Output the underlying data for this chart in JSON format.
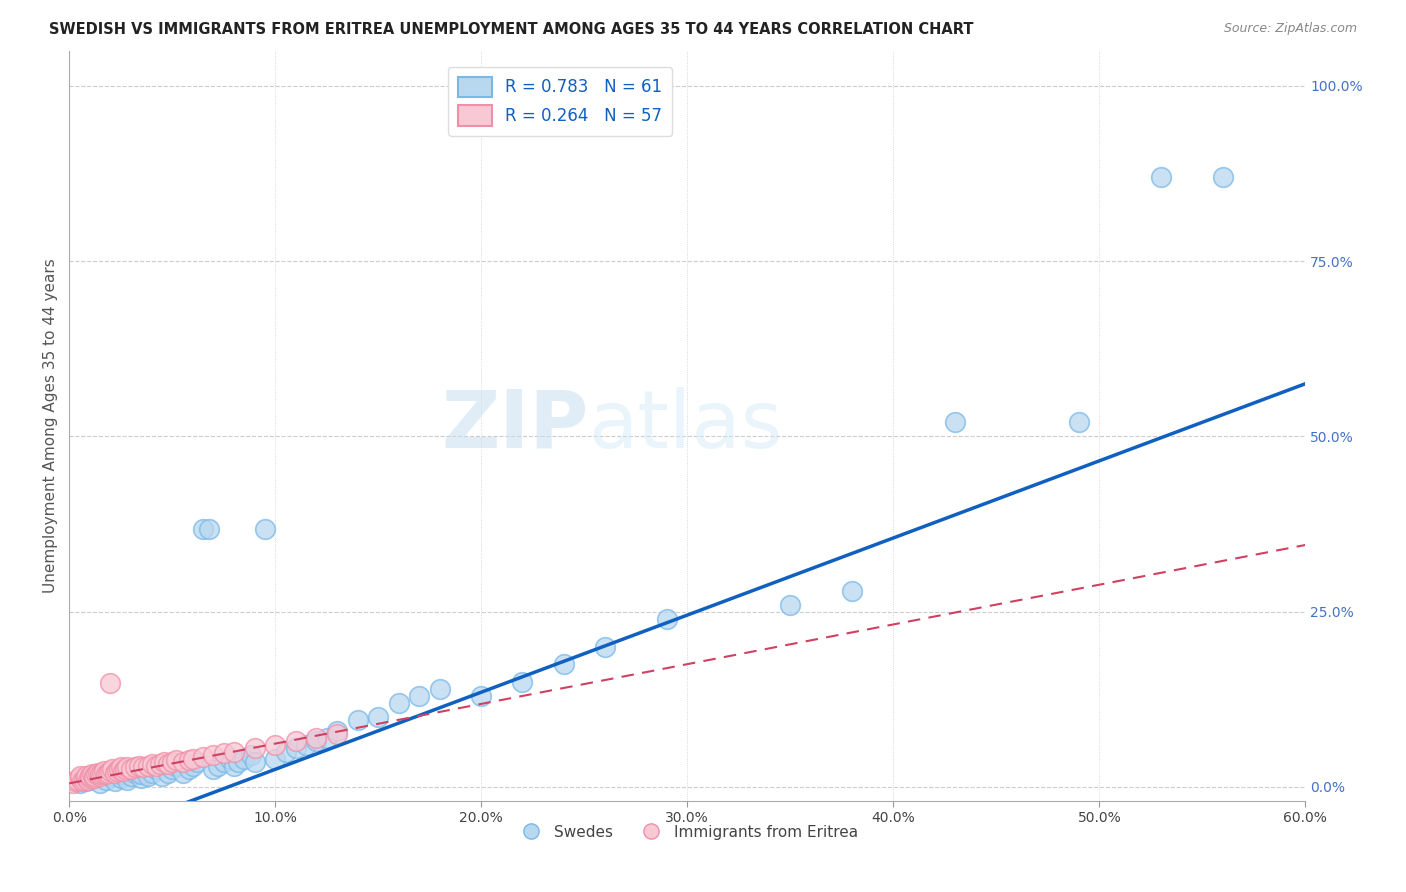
{
  "title": "SWEDISH VS IMMIGRANTS FROM ERITREA UNEMPLOYMENT AMONG AGES 35 TO 44 YEARS CORRELATION CHART",
  "source": "Source: ZipAtlas.com",
  "ylabel": "Unemployment Among Ages 35 to 44 years",
  "xlim": [
    0.0,
    0.6
  ],
  "ylim": [
    -0.02,
    1.05
  ],
  "xticks": [
    0.0,
    0.1,
    0.2,
    0.3,
    0.4,
    0.5,
    0.6
  ],
  "xticklabels": [
    "0.0%",
    "10.0%",
    "20.0%",
    "30.0%",
    "40.0%",
    "50.0%",
    "60.0%"
  ],
  "ytick_vals": [
    0.0,
    0.25,
    0.5,
    0.75,
    1.0
  ],
  "yticklabels_right": [
    "0.0%",
    "25.0%",
    "50.0%",
    "75.0%",
    "100.0%"
  ],
  "legend_blue_label": "R = 0.783   N = 61",
  "legend_pink_label": "R = 0.264   N = 57",
  "blue_scatter_color_face": "#b8d8f0",
  "blue_scatter_color_edge": "#7ab8e8",
  "pink_scatter_color_face": "#f8c8d4",
  "pink_scatter_color_edge": "#f090a8",
  "blue_line_color": "#1060c0",
  "pink_line_color": "#d04060",
  "watermark_text": "ZIPatlas",
  "swedes_label": "Swedes",
  "eritrea_label": "Immigrants from Eritrea",
  "blue_scatter_x": [
    0.005,
    0.008,
    0.01,
    0.012,
    0.015,
    0.018,
    0.02,
    0.022,
    0.025,
    0.025,
    0.028,
    0.03,
    0.032,
    0.035,
    0.035,
    0.038,
    0.04,
    0.042,
    0.045,
    0.048,
    0.05,
    0.052,
    0.055,
    0.058,
    0.06,
    0.062,
    0.065,
    0.068,
    0.07,
    0.072,
    0.075,
    0.078,
    0.08,
    0.082,
    0.085,
    0.088,
    0.09,
    0.095,
    0.1,
    0.105,
    0.11,
    0.115,
    0.12,
    0.125,
    0.13,
    0.14,
    0.15,
    0.16,
    0.17,
    0.18,
    0.2,
    0.22,
    0.24,
    0.26,
    0.29,
    0.35,
    0.38,
    0.43,
    0.49,
    0.53,
    0.56
  ],
  "blue_scatter_y": [
    0.005,
    0.008,
    0.01,
    0.012,
    0.005,
    0.01,
    0.015,
    0.008,
    0.012,
    0.018,
    0.01,
    0.015,
    0.02,
    0.012,
    0.018,
    0.015,
    0.02,
    0.025,
    0.015,
    0.02,
    0.025,
    0.03,
    0.02,
    0.025,
    0.03,
    0.035,
    0.368,
    0.368,
    0.025,
    0.03,
    0.035,
    0.04,
    0.03,
    0.035,
    0.04,
    0.045,
    0.035,
    0.368,
    0.04,
    0.05,
    0.055,
    0.06,
    0.065,
    0.07,
    0.08,
    0.095,
    0.1,
    0.12,
    0.13,
    0.14,
    0.13,
    0.15,
    0.175,
    0.2,
    0.24,
    0.26,
    0.28,
    0.52,
    0.52,
    0.87,
    0.87
  ],
  "pink_scatter_x": [
    0.002,
    0.003,
    0.004,
    0.005,
    0.005,
    0.006,
    0.007,
    0.008,
    0.008,
    0.009,
    0.01,
    0.01,
    0.011,
    0.012,
    0.012,
    0.013,
    0.014,
    0.015,
    0.015,
    0.016,
    0.017,
    0.018,
    0.019,
    0.02,
    0.021,
    0.022,
    0.023,
    0.024,
    0.025,
    0.026,
    0.027,
    0.028,
    0.03,
    0.032,
    0.034,
    0.036,
    0.038,
    0.04,
    0.042,
    0.044,
    0.046,
    0.048,
    0.05,
    0.052,
    0.055,
    0.058,
    0.06,
    0.065,
    0.07,
    0.075,
    0.08,
    0.09,
    0.1,
    0.11,
    0.12,
    0.13,
    0.02
  ],
  "pink_scatter_y": [
    0.005,
    0.008,
    0.01,
    0.012,
    0.015,
    0.008,
    0.01,
    0.012,
    0.015,
    0.01,
    0.012,
    0.015,
    0.018,
    0.012,
    0.015,
    0.018,
    0.02,
    0.015,
    0.018,
    0.02,
    0.022,
    0.018,
    0.02,
    0.022,
    0.025,
    0.02,
    0.022,
    0.025,
    0.028,
    0.022,
    0.025,
    0.028,
    0.025,
    0.028,
    0.03,
    0.028,
    0.03,
    0.032,
    0.03,
    0.032,
    0.035,
    0.032,
    0.035,
    0.038,
    0.035,
    0.038,
    0.04,
    0.042,
    0.045,
    0.048,
    0.05,
    0.055,
    0.06,
    0.065,
    0.07,
    0.075,
    0.148
  ],
  "blue_line_x": [
    -0.01,
    0.6
  ],
  "blue_line_y": [
    -0.096,
    0.575
  ],
  "pink_line_x": [
    0.0,
    0.6
  ],
  "pink_line_y": [
    0.005,
    0.345
  ]
}
